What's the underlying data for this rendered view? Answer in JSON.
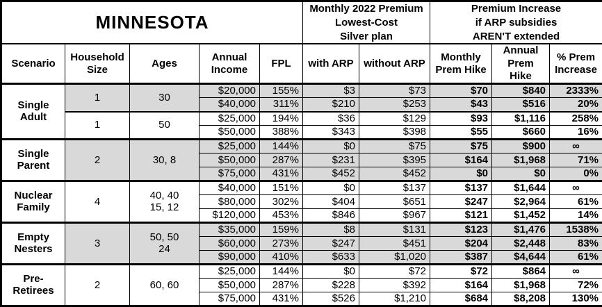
{
  "title": "MINNESOTA",
  "header_groups": {
    "premium": "Monthly 2022 Premium\nLowest-Cost\nSilver plan",
    "increase": "Premium Increase\nif ARP subsidies\nAREN'T extended"
  },
  "columns": {
    "scenario": "Scenario",
    "household_size": "Household\nSize",
    "ages": "Ages",
    "annual_income": "Annual\nIncome",
    "fpl": "FPL",
    "with_arp": "with ARP",
    "without_arp": "without ARP",
    "monthly_hike": "Monthly\nPrem Hike",
    "annual_hike": "Annual\nPrem Hike",
    "pct_increase": "% Prem\nIncrease"
  },
  "colors": {
    "shaded_row": "#d9d9d9",
    "border": "#000000",
    "background": "#ffffff",
    "text": "#000000"
  },
  "groups": [
    {
      "scenario": "Single\nAdult",
      "subgroups": [
        {
          "household_size": "1",
          "ages": "30",
          "shaded": true,
          "rows": [
            {
              "income": "$20,000",
              "fpl": "155%",
              "with_arp": "$3",
              "without_arp": "$73",
              "monthly_hike": "$70",
              "annual_hike": "$840",
              "pct_increase": "2333%"
            },
            {
              "income": "$40,000",
              "fpl": "311%",
              "with_arp": "$210",
              "without_arp": "$253",
              "monthly_hike": "$43",
              "annual_hike": "$516",
              "pct_increase": "20%"
            }
          ]
        },
        {
          "household_size": "1",
          "ages": "50",
          "shaded": false,
          "rows": [
            {
              "income": "$25,000",
              "fpl": "194%",
              "with_arp": "$36",
              "without_arp": "$129",
              "monthly_hike": "$93",
              "annual_hike": "$1,116",
              "pct_increase": "258%"
            },
            {
              "income": "$50,000",
              "fpl": "388%",
              "with_arp": "$343",
              "without_arp": "$398",
              "monthly_hike": "$55",
              "annual_hike": "$660",
              "pct_increase": "16%"
            }
          ]
        }
      ]
    },
    {
      "scenario": "Single\nParent",
      "subgroups": [
        {
          "household_size": "2",
          "ages": "30, 8",
          "shaded": true,
          "rows": [
            {
              "income": "$25,000",
              "fpl": "144%",
              "with_arp": "$0",
              "without_arp": "$75",
              "monthly_hike": "$75",
              "annual_hike": "$900",
              "pct_increase": "∞"
            },
            {
              "income": "$50,000",
              "fpl": "287%",
              "with_arp": "$231",
              "without_arp": "$395",
              "monthly_hike": "$164",
              "annual_hike": "$1,968",
              "pct_increase": "71%"
            },
            {
              "income": "$75,000",
              "fpl": "431%",
              "with_arp": "$452",
              "without_arp": "$452",
              "monthly_hike": "$0",
              "annual_hike": "$0",
              "pct_increase": "0%"
            }
          ]
        }
      ]
    },
    {
      "scenario": "Nuclear\nFamily",
      "subgroups": [
        {
          "household_size": "4",
          "ages": "40, 40\n15, 12",
          "shaded": false,
          "rows": [
            {
              "income": "$40,000",
              "fpl": "151%",
              "with_arp": "$0",
              "without_arp": "$137",
              "monthly_hike": "$137",
              "annual_hike": "$1,644",
              "pct_increase": "∞"
            },
            {
              "income": "$80,000",
              "fpl": "302%",
              "with_arp": "$404",
              "without_arp": "$651",
              "monthly_hike": "$247",
              "annual_hike": "$2,964",
              "pct_increase": "61%"
            },
            {
              "income": "$120,000",
              "fpl": "453%",
              "with_arp": "$846",
              "without_arp": "$967",
              "monthly_hike": "$121",
              "annual_hike": "$1,452",
              "pct_increase": "14%"
            }
          ]
        }
      ]
    },
    {
      "scenario": "Empty\nNesters",
      "subgroups": [
        {
          "household_size": "3",
          "ages": "50, 50\n24",
          "shaded": true,
          "rows": [
            {
              "income": "$35,000",
              "fpl": "159%",
              "with_arp": "$8",
              "without_arp": "$131",
              "monthly_hike": "$123",
              "annual_hike": "$1,476",
              "pct_increase": "1538%"
            },
            {
              "income": "$60,000",
              "fpl": "273%",
              "with_arp": "$247",
              "without_arp": "$451",
              "monthly_hike": "$204",
              "annual_hike": "$2,448",
              "pct_increase": "83%"
            },
            {
              "income": "$90,000",
              "fpl": "410%",
              "with_arp": "$633",
              "without_arp": "$1,020",
              "monthly_hike": "$387",
              "annual_hike": "$4,644",
              "pct_increase": "61%"
            }
          ]
        }
      ]
    },
    {
      "scenario": "Pre-\nRetirees",
      "subgroups": [
        {
          "household_size": "2",
          "ages": "60, 60",
          "shaded": false,
          "rows": [
            {
              "income": "$25,000",
              "fpl": "144%",
              "with_arp": "$0",
              "without_arp": "$72",
              "monthly_hike": "$72",
              "annual_hike": "$864",
              "pct_increase": "∞"
            },
            {
              "income": "$50,000",
              "fpl": "287%",
              "with_arp": "$228",
              "without_arp": "$392",
              "monthly_hike": "$164",
              "annual_hike": "$1,968",
              "pct_increase": "72%"
            },
            {
              "income": "$75,000",
              "fpl": "431%",
              "with_arp": "$526",
              "without_arp": "$1,210",
              "monthly_hike": "$684",
              "annual_hike": "$8,208",
              "pct_increase": "130%"
            }
          ]
        }
      ]
    }
  ]
}
